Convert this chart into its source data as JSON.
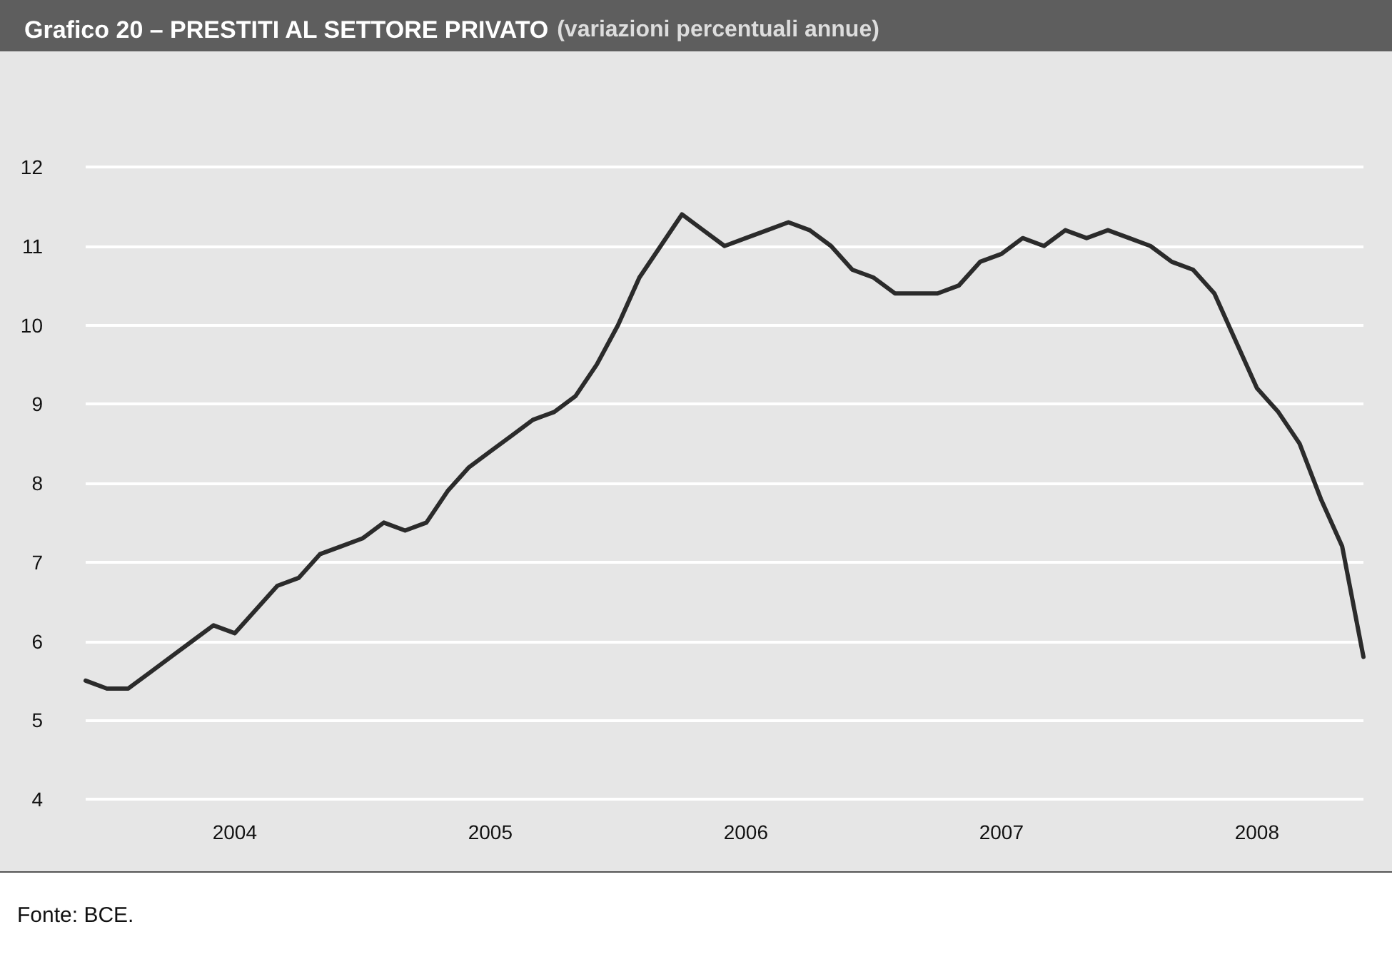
{
  "chart_data": {
    "type": "line",
    "title": "Grafico 20 – PRESTITI AL SETTORE PRIVATO",
    "subtitle": "(variazioni percentuali annue)",
    "categories": [
      null,
      null,
      null,
      null,
      null,
      null,
      null,
      "2004",
      null,
      null,
      null,
      null,
      null,
      null,
      null,
      null,
      null,
      null,
      null,
      "2005",
      null,
      null,
      null,
      null,
      null,
      null,
      null,
      null,
      null,
      null,
      null,
      "2006",
      null,
      null,
      null,
      null,
      null,
      null,
      null,
      null,
      null,
      null,
      null,
      "2007",
      null,
      null,
      null,
      null,
      null,
      null,
      null,
      null,
      null,
      null,
      null,
      "2008",
      null,
      null,
      null,
      null,
      null
    ],
    "series": [
      {
        "color": "#2b2b2b",
        "values": [
          5.5,
          5.4,
          5.4,
          5.6,
          5.8,
          6.0,
          6.2,
          6.1,
          6.4,
          6.7,
          6.8,
          7.1,
          7.2,
          7.3,
          7.5,
          7.4,
          7.5,
          7.9,
          8.2,
          8.4,
          8.6,
          8.8,
          8.9,
          9.1,
          9.5,
          10.0,
          10.6,
          11.0,
          11.4,
          11.2,
          11.0,
          11.1,
          11.2,
          11.3,
          11.2,
          11.0,
          10.7,
          10.6,
          10.4,
          10.4,
          10.4,
          10.5,
          10.8,
          10.9,
          11.1,
          11.0,
          11.2,
          11.1,
          11.2,
          11.1,
          11.0,
          10.8,
          10.7,
          10.4,
          9.8,
          9.2,
          8.9,
          8.5,
          7.8,
          7.2,
          5.8
        ]
      }
    ],
    "ylim": [
      4,
      12
    ],
    "yticks": [
      4,
      5,
      6,
      7,
      8,
      9,
      10,
      11,
      12
    ],
    "grid": "y",
    "marker": "none",
    "line_style": "solid",
    "annotations": [
      "Fonte: BCE."
    ]
  }
}
